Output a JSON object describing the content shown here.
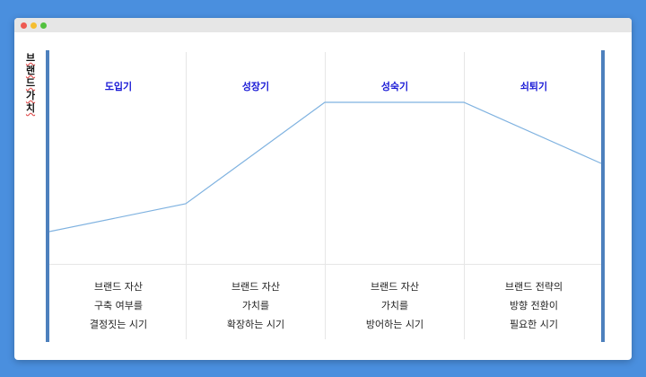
{
  "axis_label": "브랜드가치",
  "stages": [
    {
      "name": "도입기",
      "desc": [
        "브랜드 자산",
        "구축 여부를",
        "결정짓는 시기"
      ]
    },
    {
      "name": "성장기",
      "desc": [
        "브랜드 자산",
        "가치를",
        "확장하는 시기"
      ]
    },
    {
      "name": "성숙기",
      "desc": [
        "브랜드 자산",
        "가치를",
        "방어하는 시기"
      ]
    },
    {
      "name": "쇠퇴기",
      "desc": [
        "브랜드 전략의",
        "방향 전환이",
        "필요한 시기"
      ]
    }
  ],
  "colors": {
    "background": "#4a8fde",
    "stage_title": "#1a1ad6",
    "curve": "#7fb2e0",
    "side_bar": "#4d80bd"
  }
}
